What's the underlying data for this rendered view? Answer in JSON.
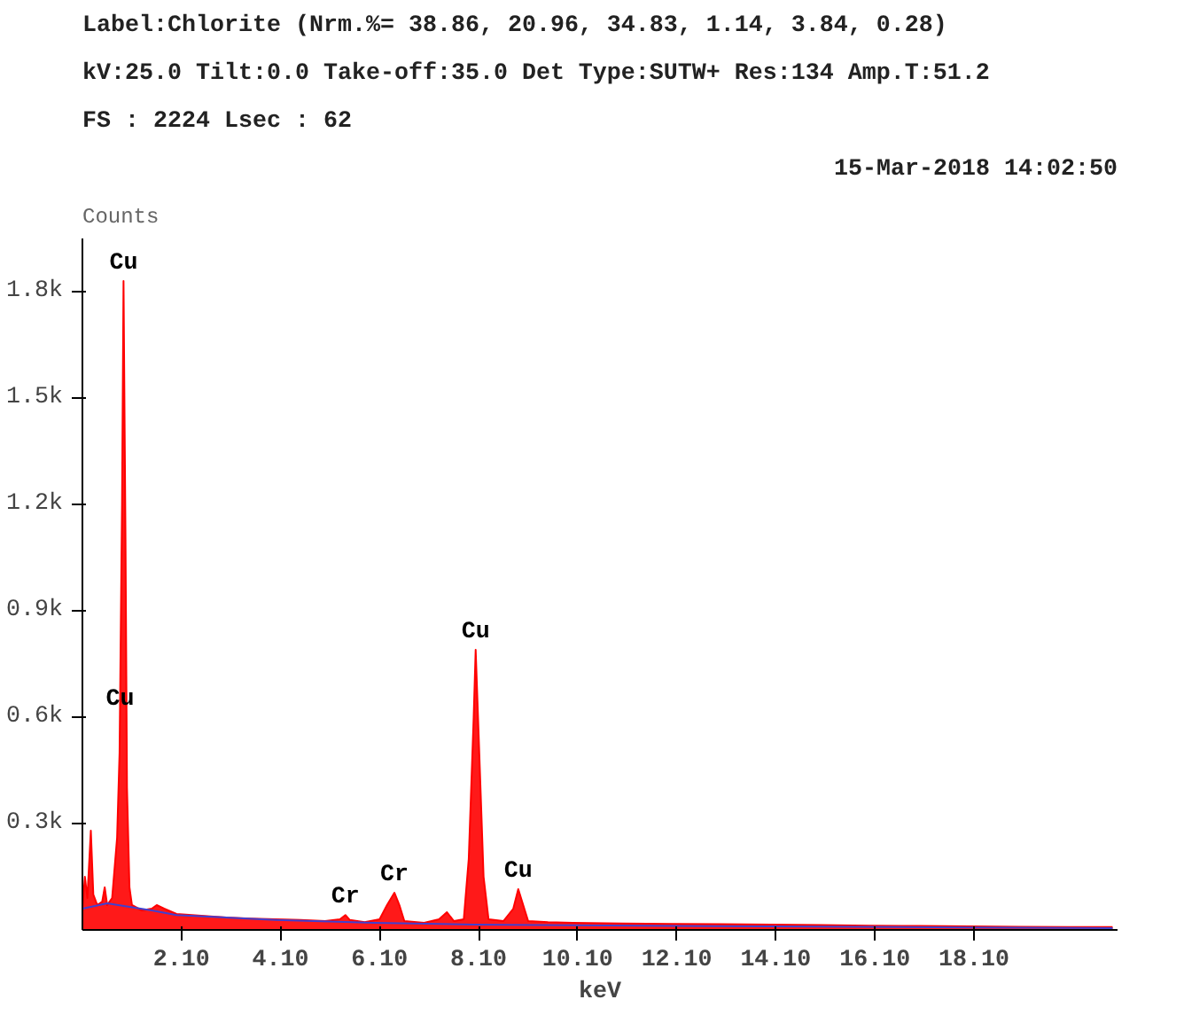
{
  "chart_data": {
    "type": "area",
    "title": "Label:Chlorite (Nrm.%= 38.86, 20.96, 34.83, 1.14, 3.84, 0.28)",
    "subtitle": "kV:25.0 Tilt:0.0  Take-off:35.0   Det Type:SUTW+  Res:134  Amp.T:51.2",
    "annotations": [
      "FS : 2224  Lsec : 62",
      "15-Mar-2018 14:02:50",
      {
        "text": "Cu",
        "x": 0.93,
        "y": 1830
      },
      {
        "text": "Cu",
        "x": 0.86,
        "y": 600
      },
      {
        "text": "Cr",
        "x": 5.41,
        "y": 42
      },
      {
        "text": "Cr",
        "x": 6.4,
        "y": 105
      },
      {
        "text": "Cu",
        "x": 8.04,
        "y": 790
      },
      {
        "text": "Cu",
        "x": 8.9,
        "y": 115
      }
    ],
    "xlabel": "keV",
    "ylabel": "Counts",
    "xlim": [
      0.1,
      21
    ],
    "ylim": [
      0,
      1950
    ],
    "xticks": [
      {
        "value": 2.1,
        "label": "2.10"
      },
      {
        "value": 4.1,
        "label": "4.10"
      },
      {
        "value": 6.1,
        "label": "6.10"
      },
      {
        "value": 8.1,
        "label": "8.10"
      },
      {
        "value": 10.1,
        "label": "10.10"
      },
      {
        "value": 12.1,
        "label": "12.10"
      },
      {
        "value": 14.1,
        "label": "14.10"
      },
      {
        "value": 16.1,
        "label": "16.10"
      },
      {
        "value": 18.1,
        "label": "18.10"
      }
    ],
    "yticks": [
      {
        "value": 300,
        "label": "0.3k"
      },
      {
        "value": 600,
        "label": "0.6k"
      },
      {
        "value": 900,
        "label": "0.9k"
      },
      {
        "value": 1200,
        "label": "1.2k"
      },
      {
        "value": 1500,
        "label": "1.5k"
      },
      {
        "value": 1800,
        "label": "1.8k"
      }
    ],
    "grid": false,
    "series": [
      {
        "color": "#ff0000",
        "x": [
          0.1,
          0.15,
          0.2,
          0.27,
          0.32,
          0.4,
          0.5,
          0.55,
          0.6,
          0.7,
          0.8,
          0.85,
          0.9,
          0.93,
          0.97,
          1.0,
          1.05,
          1.1,
          1.3,
          1.5,
          1.6,
          1.75,
          2.0,
          2.5,
          3.0,
          3.5,
          4.0,
          4.5,
          5.0,
          5.3,
          5.41,
          5.5,
          5.8,
          6.1,
          6.25,
          6.4,
          6.5,
          6.6,
          7.0,
          7.3,
          7.46,
          7.6,
          7.8,
          7.9,
          8.0,
          8.04,
          8.1,
          8.2,
          8.3,
          8.6,
          8.8,
          8.9,
          9.0,
          9.1,
          9.5,
          10,
          11,
          12,
          13,
          14,
          15,
          16,
          17,
          18,
          19,
          20,
          20.9
        ],
        "values": [
          60,
          150,
          90,
          280,
          100,
          70,
          80,
          120,
          70,
          90,
          260,
          500,
          1200,
          1830,
          1100,
          400,
          120,
          70,
          55,
          60,
          70,
          60,
          45,
          40,
          35,
          32,
          30,
          28,
          25,
          30,
          42,
          28,
          22,
          30,
          70,
          105,
          70,
          25,
          20,
          30,
          50,
          25,
          30,
          200,
          600,
          790,
          550,
          150,
          30,
          25,
          60,
          115,
          70,
          25,
          22,
          20,
          18,
          17,
          16,
          15,
          14,
          12,
          11,
          10,
          9,
          8,
          8
        ]
      },
      {
        "type": "line",
        "color": "#4040d0",
        "x": [
          0.1,
          0.6,
          1.5,
          2.0,
          4,
          6,
          8,
          10,
          14,
          18,
          20.9
        ],
        "values": [
          60,
          75,
          55,
          42,
          28,
          20,
          15,
          13,
          10,
          7,
          5
        ]
      }
    ]
  }
}
